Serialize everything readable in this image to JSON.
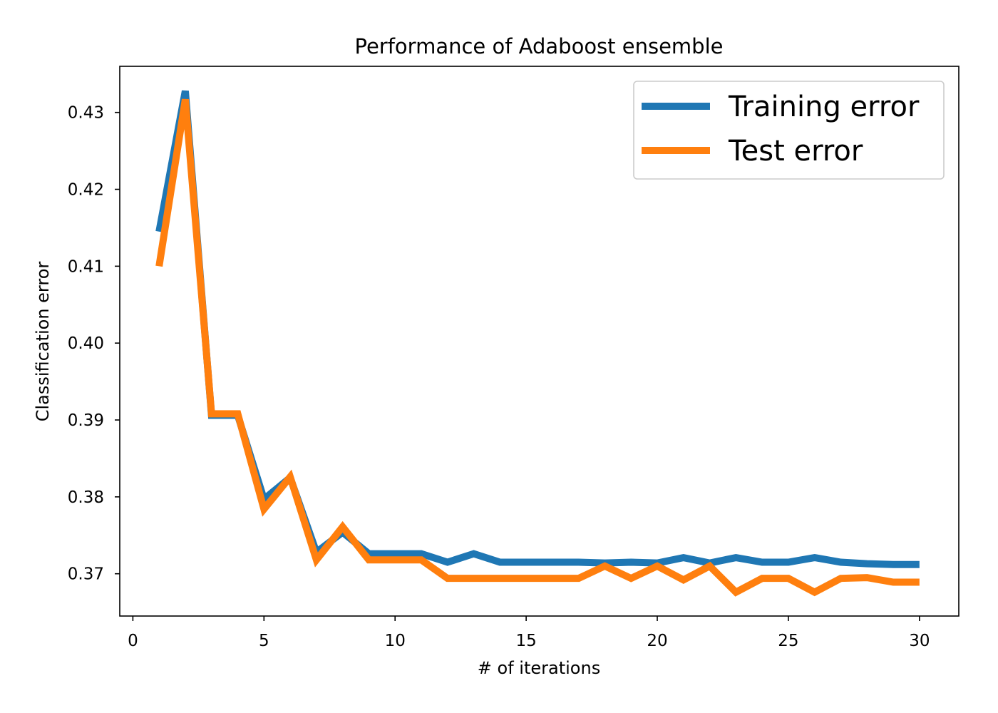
{
  "chart_data": {
    "type": "line",
    "title": "Performance of Adaboost ensemble",
    "xlabel": "# of iterations",
    "ylabel": "Classification error",
    "xlim": [
      -0.5,
      31.5
    ],
    "ylim": [
      0.3645,
      0.436
    ],
    "xticks": [
      0,
      5,
      10,
      15,
      20,
      25,
      30
    ],
    "xtick_labels": [
      "0",
      "5",
      "10",
      "15",
      "20",
      "25",
      "30"
    ],
    "yticks": [
      0.37,
      0.38,
      0.39,
      0.4,
      0.41,
      0.42,
      0.43
    ],
    "ytick_labels": [
      "0.37",
      "0.38",
      "0.39",
      "0.40",
      "0.41",
      "0.42",
      "0.43"
    ],
    "grid": false,
    "legend_position": "top-right",
    "x": [
      1,
      2,
      3,
      4,
      5,
      6,
      7,
      8,
      9,
      10,
      11,
      12,
      13,
      14,
      15,
      16,
      17,
      18,
      19,
      20,
      21,
      22,
      23,
      24,
      25,
      26,
      27,
      28,
      29,
      30
    ],
    "series": [
      {
        "name": "Training error",
        "color": "#1f77b4",
        "values": [
          0.4145,
          0.4328,
          0.3906,
          0.3906,
          0.3797,
          0.3825,
          0.3728,
          0.3754,
          0.3726,
          0.3726,
          0.3726,
          0.3715,
          0.3726,
          0.3715,
          0.3715,
          0.3715,
          0.3715,
          0.3714,
          0.3715,
          0.3714,
          0.3721,
          0.3714,
          0.3721,
          0.3715,
          0.3715,
          0.3721,
          0.3715,
          0.3713,
          0.3712,
          0.3712
        ]
      },
      {
        "name": "Test error",
        "color": "#ff7f0e",
        "values": [
          0.41,
          0.4317,
          0.3908,
          0.3908,
          0.3784,
          0.3826,
          0.3718,
          0.3761,
          0.3718,
          0.3718,
          0.3718,
          0.3694,
          0.3694,
          0.3694,
          0.3694,
          0.3694,
          0.3694,
          0.371,
          0.3694,
          0.371,
          0.3692,
          0.371,
          0.3676,
          0.3694,
          0.3694,
          0.3676,
          0.3694,
          0.3695,
          0.3689,
          0.3689
        ]
      }
    ]
  }
}
